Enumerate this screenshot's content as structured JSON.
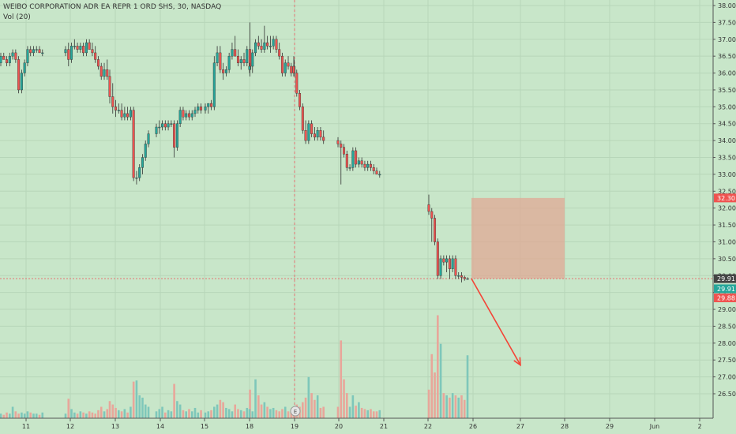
{
  "header": {
    "symbol_line": "WEIBO CORPORATION ADR EA REPR 1 ORD SHS, 30, NASDAQ",
    "volume_label": "Vol (20)"
  },
  "chart_data": {
    "type": "candlestick",
    "title": "WEIBO CORPORATION ADR EA REPR 1 ORD SHS, 30, NASDAQ",
    "interval": "30",
    "exchange": "NASDAQ",
    "ylim": [
      26.3,
      38.1
    ],
    "y_ticks": [
      "26.50",
      "27.00",
      "27.50",
      "28.00",
      "28.50",
      "29.00",
      "29.50",
      "30.00",
      "30.50",
      "31.00",
      "31.50",
      "32.00",
      "32.50",
      "33.00",
      "33.50",
      "34.00",
      "34.50",
      "35.00",
      "35.50",
      "36.00",
      "36.50",
      "37.00",
      "37.50",
      "38.00"
    ],
    "x_tick_labels": [
      "11",
      "12",
      "13",
      "14",
      "15",
      "18",
      "19",
      "20",
      "21",
      "22",
      "26",
      "27",
      "28",
      "29",
      "Jun",
      "2"
    ],
    "colors": {
      "background": "#c8e6c9",
      "up": "#26a69a",
      "down": "#ef5350",
      "up_volume": "#7ec7ba",
      "down_volume": "#e8a69a",
      "axis_text": "#333333",
      "grid": "#b7d6b9",
      "box_fill": "#e0a894",
      "arrow": "#f44336"
    },
    "price_labels": [
      {
        "value": "32.30",
        "price": 32.3,
        "color": "#ef5350"
      },
      {
        "value": "29.91",
        "price": 29.91,
        "color": "#444444"
      },
      {
        "value": "29.91",
        "price": 29.61,
        "color": "#26a69a"
      },
      {
        "value": "29.88",
        "price": 29.34,
        "color": "#ef5350"
      }
    ],
    "current_price": 29.91,
    "projection_box": {
      "price_top": 32.3,
      "price_bottom": 29.91,
      "date_start": "26",
      "date_end": "28"
    },
    "projection_arrow": {
      "from_price": 29.91,
      "to_price": 27.35,
      "from_date": "26",
      "to_date": "27"
    },
    "earnings_marker": {
      "label": "E",
      "date": "19"
    },
    "candles": [
      [
        36.3,
        36.6,
        36.2,
        36.5
      ],
      [
        36.5,
        36.6,
        36.4,
        36.4
      ],
      [
        36.4,
        36.5,
        36.2,
        36.3
      ],
      [
        36.3,
        36.6,
        36.2,
        36.5
      ],
      [
        36.5,
        36.7,
        36.4,
        36.6
      ],
      [
        36.6,
        36.7,
        36.3,
        36.4
      ],
      [
        36.4,
        36.5,
        35.4,
        35.5
      ],
      [
        35.5,
        36.1,
        35.4,
        36.0
      ],
      [
        36.0,
        36.4,
        35.9,
        36.3
      ],
      [
        36.3,
        36.8,
        36.2,
        36.7
      ],
      [
        36.7,
        36.8,
        36.5,
        36.6
      ],
      [
        36.6,
        36.8,
        36.5,
        36.7
      ],
      [
        36.7,
        36.8,
        36.6,
        36.7
      ],
      [
        36.7,
        36.8,
        36.6,
        36.6
      ],
      [
        36.6,
        36.7,
        36.5,
        36.6
      ],
      [
        36.6,
        36.8,
        36.5,
        36.7
      ],
      [
        36.7,
        36.9,
        36.2,
        36.4
      ],
      [
        36.4,
        36.9,
        36.3,
        36.8
      ],
      [
        36.8,
        37.0,
        36.7,
        36.8
      ],
      [
        36.8,
        36.9,
        36.6,
        36.7
      ],
      [
        36.7,
        36.9,
        36.6,
        36.8
      ],
      [
        36.8,
        36.9,
        36.5,
        36.6
      ],
      [
        36.6,
        37.0,
        36.5,
        36.9
      ],
      [
        36.9,
        37.0,
        36.7,
        36.7
      ],
      [
        36.7,
        36.9,
        36.5,
        36.6
      ],
      [
        36.6,
        36.8,
        36.3,
        36.4
      ],
      [
        36.4,
        36.5,
        36.1,
        36.2
      ],
      [
        36.2,
        36.3,
        35.8,
        35.9
      ],
      [
        35.9,
        36.3,
        35.8,
        36.1
      ],
      [
        36.1,
        36.4,
        35.8,
        35.9
      ],
      [
        35.9,
        36.1,
        35.1,
        35.3
      ],
      [
        35.3,
        35.7,
        34.8,
        35.0
      ],
      [
        35.0,
        35.2,
        34.7,
        34.9
      ],
      [
        34.9,
        35.1,
        34.8,
        34.9
      ],
      [
        34.9,
        35.1,
        34.6,
        34.7
      ],
      [
        34.7,
        35.0,
        34.6,
        34.8
      ],
      [
        34.8,
        35.0,
        34.6,
        34.7
      ],
      [
        34.7,
        35.0,
        34.6,
        34.9
      ],
      [
        34.9,
        35.0,
        32.8,
        32.9
      ],
      [
        32.9,
        33.1,
        32.7,
        32.9
      ],
      [
        32.9,
        33.3,
        32.8,
        33.2
      ],
      [
        33.2,
        33.6,
        33.0,
        33.5
      ],
      [
        33.5,
        34.0,
        33.4,
        33.9
      ],
      [
        33.9,
        34.3,
        33.8,
        34.2
      ],
      [
        34.2,
        34.5,
        34.1,
        34.4
      ],
      [
        34.4,
        34.6,
        34.2,
        34.4
      ],
      [
        34.4,
        34.6,
        34.3,
        34.5
      ],
      [
        34.5,
        34.6,
        34.3,
        34.4
      ],
      [
        34.4,
        34.6,
        34.3,
        34.5
      ],
      [
        34.5,
        34.6,
        34.4,
        34.5
      ],
      [
        34.5,
        34.6,
        33.5,
        33.8
      ],
      [
        33.8,
        34.6,
        33.7,
        34.5
      ],
      [
        34.5,
        35.0,
        34.4,
        34.9
      ],
      [
        34.9,
        35.0,
        34.6,
        34.7
      ],
      [
        34.7,
        34.9,
        34.6,
        34.8
      ],
      [
        34.8,
        34.9,
        34.6,
        34.7
      ],
      [
        34.7,
        34.9,
        34.6,
        34.8
      ],
      [
        34.8,
        35.0,
        34.7,
        34.9
      ],
      [
        34.9,
        35.1,
        34.8,
        35.0
      ],
      [
        35.0,
        35.1,
        34.8,
        34.9
      ],
      [
        34.9,
        35.1,
        34.8,
        35.0
      ],
      [
        35.0,
        35.1,
        34.8,
        35.1
      ],
      [
        35.1,
        35.2,
        34.9,
        35.0
      ],
      [
        35.0,
        36.5,
        34.9,
        36.3
      ],
      [
        36.3,
        36.8,
        36.2,
        36.6
      ],
      [
        36.6,
        36.8,
        36.0,
        36.1
      ],
      [
        36.1,
        36.3,
        35.8,
        36.0
      ],
      [
        36.0,
        36.2,
        35.9,
        36.1
      ],
      [
        36.1,
        36.6,
        36.0,
        36.5
      ],
      [
        36.5,
        36.9,
        36.4,
        36.7
      ],
      [
        36.7,
        37.1,
        36.5,
        36.5
      ],
      [
        36.5,
        36.7,
        36.2,
        36.3
      ],
      [
        36.3,
        36.5,
        36.1,
        36.4
      ],
      [
        36.4,
        36.6,
        36.2,
        36.3
      ],
      [
        36.3,
        36.8,
        36.2,
        36.7
      ],
      [
        36.7,
        37.5,
        35.9,
        36.1
      ],
      [
        36.1,
        36.3,
        36.0,
        36.2
      ],
      [
        36.2,
        36.7,
        36.0,
        36.6
      ],
      [
        36.6,
        37.0,
        36.5,
        36.9
      ],
      [
        36.9,
        37.1,
        36.7,
        36.8
      ],
      [
        36.8,
        37.0,
        36.6,
        36.7
      ],
      [
        36.7,
        37.4,
        36.6,
        36.9
      ],
      [
        36.9,
        37.1,
        36.7,
        36.8
      ],
      [
        36.8,
        37.1,
        36.6,
        36.8
      ],
      [
        36.8,
        37.1,
        36.7,
        37.0
      ],
      [
        37.0,
        37.1,
        36.6,
        36.7
      ],
      [
        36.7,
        36.9,
        36.4,
        36.5
      ],
      [
        36.5,
        36.6,
        35.9,
        36.0
      ],
      [
        36.0,
        36.4,
        35.9,
        36.3
      ],
      [
        36.3,
        36.5,
        36.1,
        36.2
      ],
      [
        36.2,
        36.3,
        35.9,
        36.0
      ],
      [
        36.0,
        36.4,
        35.9,
        36.2
      ],
      [
        36.2,
        36.5,
        35.9,
        36.0
      ],
      [
        36.0,
        36.1,
        35.3,
        35.4
      ],
      [
        35.4,
        35.5,
        34.9,
        35.0
      ],
      [
        35.0,
        35.1,
        34.2,
        34.3
      ],
      [
        34.3,
        34.6,
        33.9,
        34.0
      ],
      [
        34.0,
        34.6,
        33.9,
        34.5
      ],
      [
        34.5,
        34.6,
        34.1,
        34.2
      ],
      [
        34.2,
        34.4,
        34.0,
        34.1
      ],
      [
        34.1,
        34.4,
        34.0,
        34.3
      ],
      [
        34.3,
        34.4,
        34.0,
        34.1
      ],
      [
        34.1,
        34.3,
        33.9,
        34.0
      ],
      [
        34.0,
        34.1,
        33.8,
        33.9
      ],
      [
        33.9,
        34.0,
        32.7,
        33.8
      ],
      [
        33.8,
        33.9,
        33.5,
        33.6
      ],
      [
        33.6,
        33.7,
        33.1,
        33.2
      ],
      [
        33.2,
        33.3,
        33.1,
        33.2
      ],
      [
        33.2,
        33.8,
        33.1,
        33.7
      ],
      [
        33.7,
        33.8,
        33.2,
        33.3
      ],
      [
        33.3,
        33.5,
        33.2,
        33.4
      ],
      [
        33.4,
        33.5,
        33.2,
        33.3
      ],
      [
        33.3,
        33.4,
        33.1,
        33.2
      ],
      [
        33.2,
        33.4,
        33.1,
        33.3
      ],
      [
        33.3,
        33.4,
        33.1,
        33.2
      ],
      [
        33.2,
        33.3,
        33.0,
        33.1
      ],
      [
        33.1,
        33.2,
        33.0,
        33.0
      ],
      [
        33.0,
        33.1,
        32.9,
        33.0
      ],
      [
        32.1,
        32.4,
        31.8,
        31.9
      ],
      [
        31.9,
        32.0,
        31.0,
        31.7
      ],
      [
        31.7,
        31.8,
        30.9,
        31.0
      ],
      [
        31.0,
        31.1,
        29.9,
        30.0
      ],
      [
        30.0,
        30.6,
        29.9,
        30.5
      ],
      [
        30.5,
        30.6,
        30.3,
        30.4
      ],
      [
        30.4,
        30.6,
        30.1,
        30.5
      ],
      [
        30.5,
        30.6,
        29.9,
        30.2
      ],
      [
        30.2,
        30.6,
        30.1,
        30.5
      ],
      [
        30.5,
        30.6,
        29.9,
        30.0
      ],
      [
        30.0,
        30.1,
        29.9,
        30.0
      ],
      [
        30.0,
        30.1,
        29.8,
        29.95
      ],
      [
        29.95,
        30.0,
        29.85,
        29.91
      ],
      [
        29.91,
        29.95,
        29.88,
        29.91
      ]
    ],
    "volumes": [
      0.04,
      0.03,
      0.05,
      0.04,
      0.1,
      0.06,
      0.04,
      0.05,
      0.04,
      0.06,
      0.05,
      0.04,
      0.04,
      0.03,
      0.05,
      0.04,
      0.17,
      0.08,
      0.05,
      0.04,
      0.06,
      0.05,
      0.04,
      0.06,
      0.05,
      0.04,
      0.07,
      0.1,
      0.06,
      0.08,
      0.15,
      0.12,
      0.09,
      0.07,
      0.06,
      0.08,
      0.05,
      0.1,
      0.32,
      0.33,
      0.2,
      0.18,
      0.12,
      0.1,
      0.06,
      0.08,
      0.1,
      0.05,
      0.07,
      0.06,
      0.3,
      0.15,
      0.12,
      0.07,
      0.06,
      0.08,
      0.06,
      0.09,
      0.05,
      0.07,
      0.05,
      0.06,
      0.07,
      0.1,
      0.12,
      0.16,
      0.14,
      0.09,
      0.08,
      0.06,
      0.12,
      0.08,
      0.07,
      0.06,
      0.09,
      0.25,
      0.08,
      0.06,
      0.34,
      0.2,
      0.12,
      0.14,
      0.1,
      0.08,
      0.09,
      0.07,
      0.06,
      0.08,
      0.1,
      0.06,
      0.07,
      0.05,
      0.07,
      0.12,
      0.1,
      0.14,
      0.18,
      0.36,
      0.22,
      0.16,
      0.2,
      0.09,
      0.1,
      0.1,
      0.68,
      0.34,
      0.22,
      0.1,
      0.2,
      0.11,
      0.14,
      0.09,
      0.08,
      0.07,
      0.08,
      0.06,
      0.06,
      0.07,
      0.25,
      0.56,
      0.4,
      0.9,
      0.65,
      0.22,
      0.2,
      0.18,
      0.22,
      0.2,
      0.18,
      0.2,
      0.16,
      0.55
    ]
  }
}
